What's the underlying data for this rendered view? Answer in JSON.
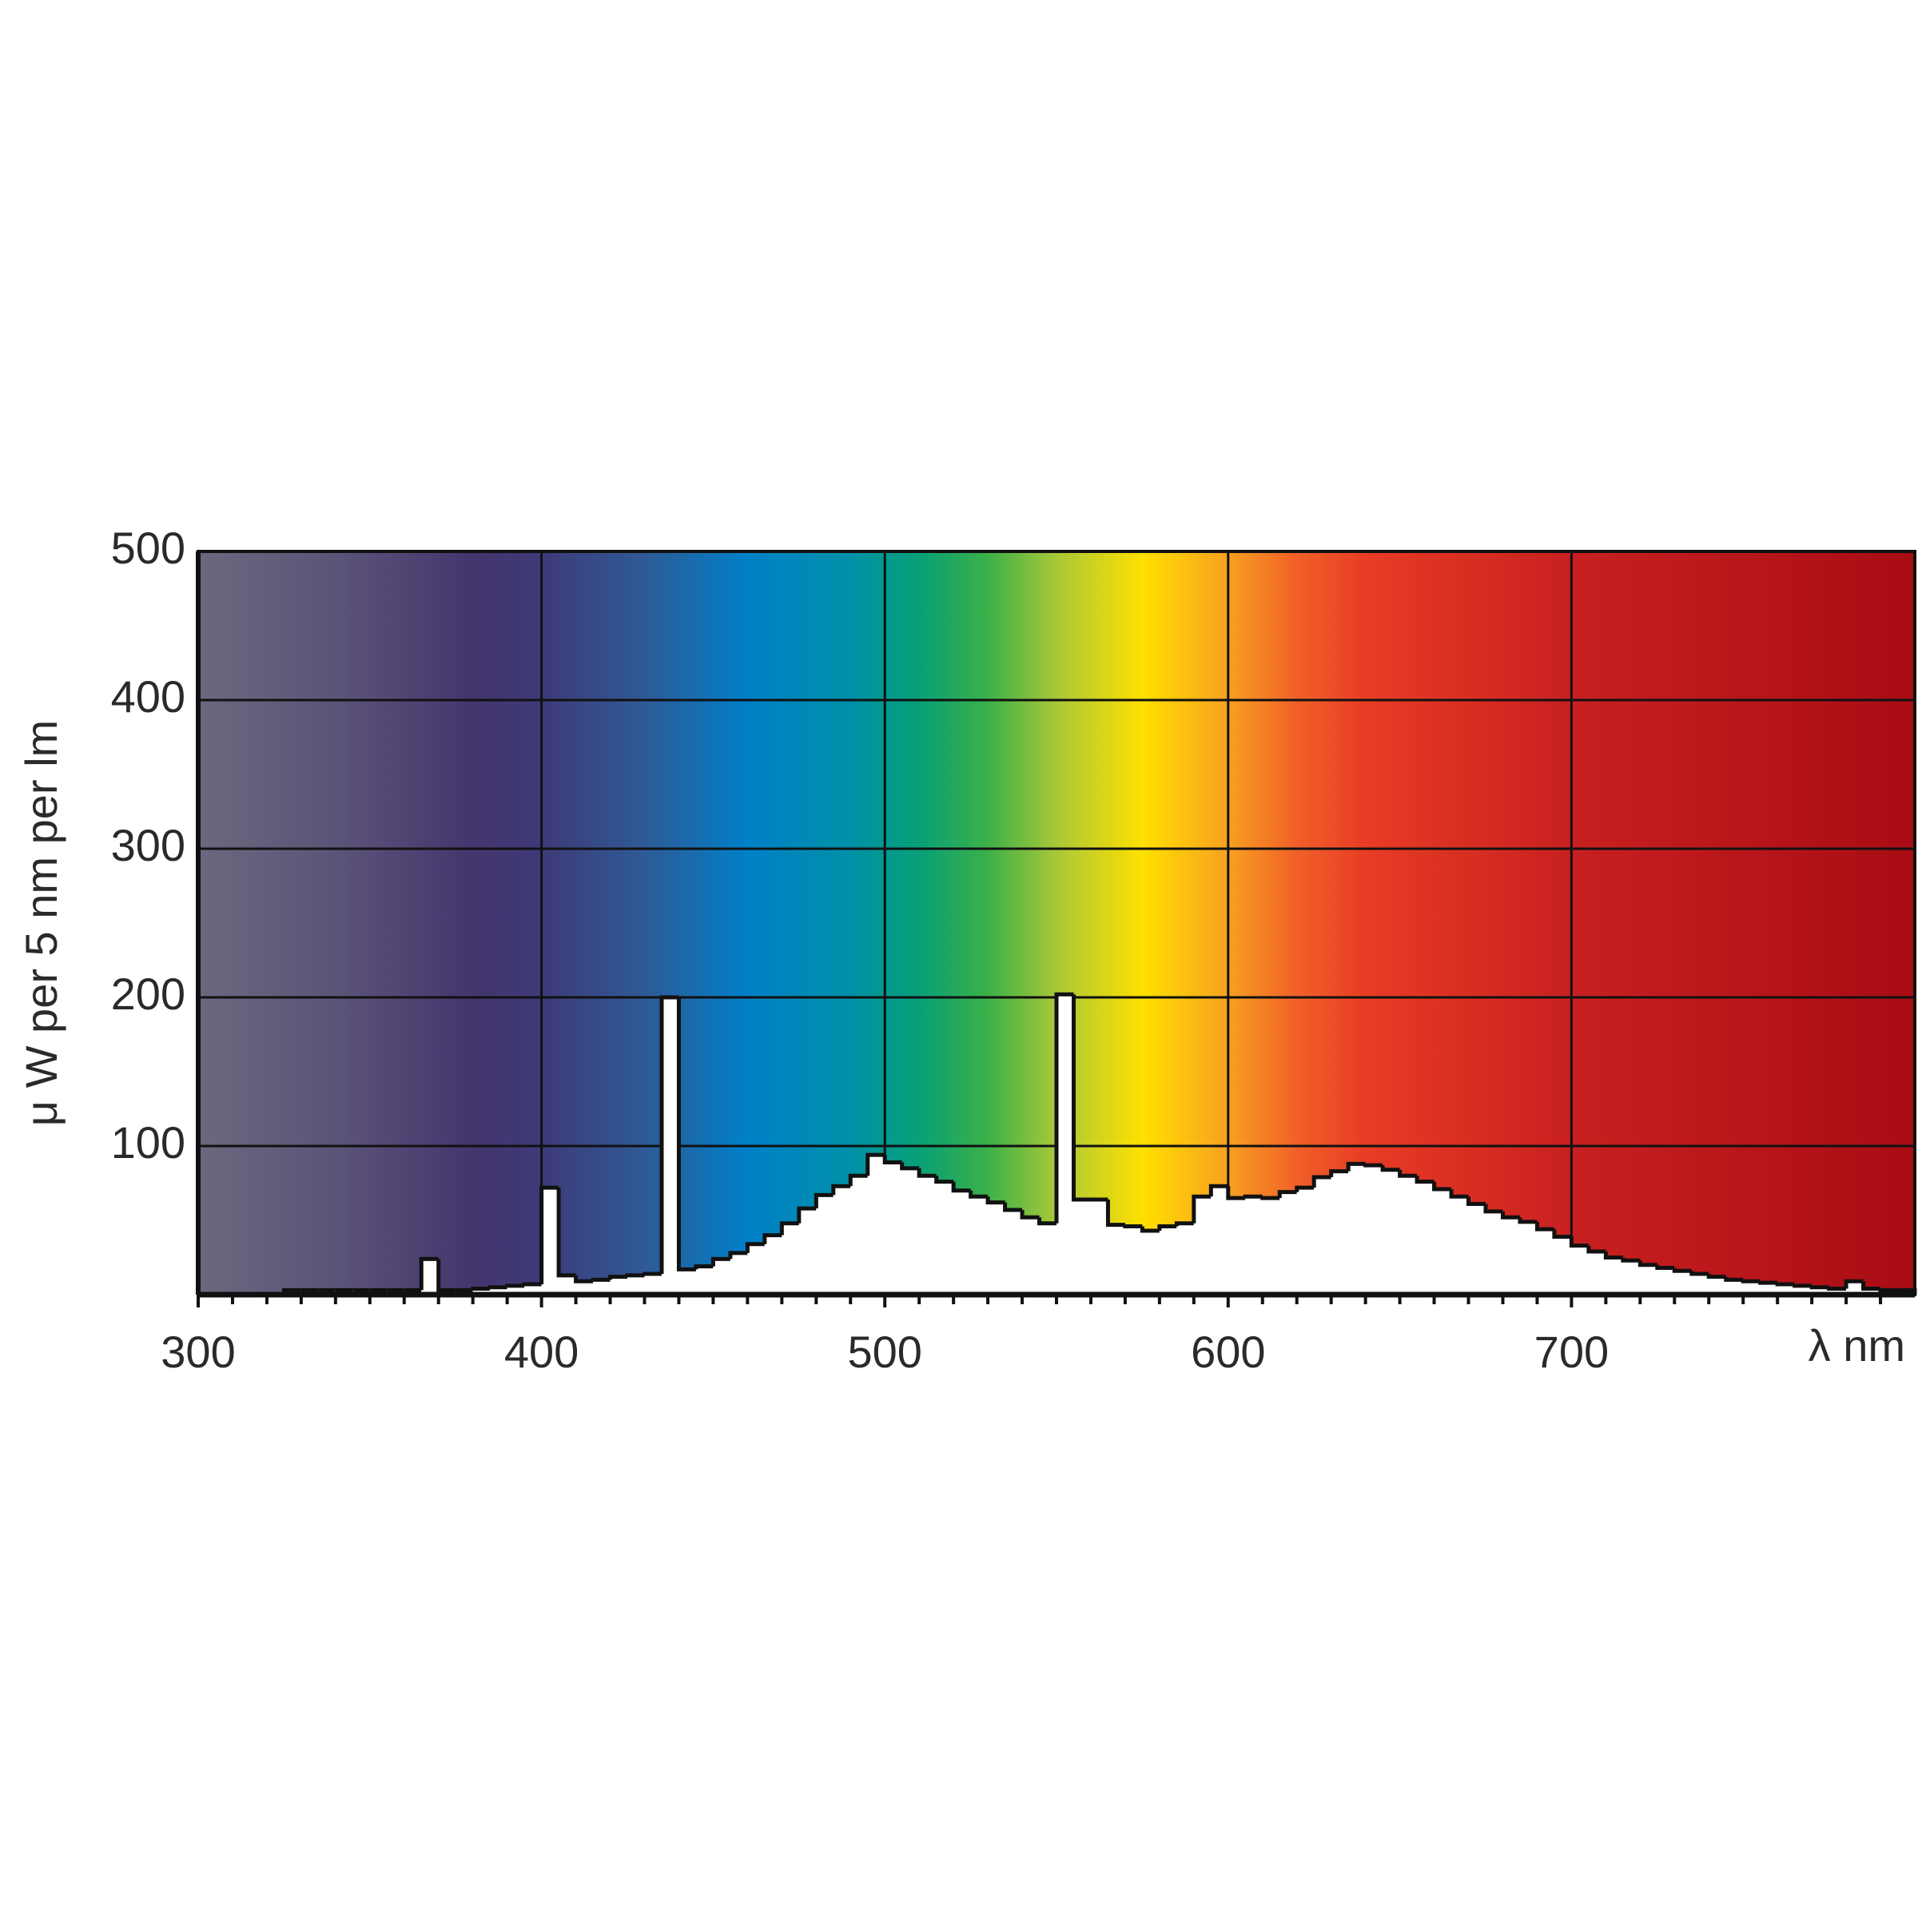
{
  "chart_data": {
    "type": "histogram",
    "ylabel": "μ W per 5 nm per lm",
    "xlabel": "λ nm",
    "xlim": [
      300,
      800
    ],
    "ylim": [
      0,
      500
    ],
    "xticks": [
      300,
      400,
      500,
      600,
      700
    ],
    "xminorticks": [
      310,
      320,
      330,
      340,
      350,
      360,
      370,
      380,
      390,
      410,
      420,
      430,
      440,
      450,
      460,
      470,
      480,
      490,
      510,
      520,
      530,
      540,
      550,
      560,
      570,
      580,
      590,
      610,
      620,
      630,
      640,
      650,
      660,
      670,
      680,
      690,
      710,
      720,
      730,
      740,
      750,
      760,
      770,
      780,
      790
    ],
    "yticks": [
      100,
      200,
      300,
      400,
      500
    ],
    "grid": true,
    "fill_color": "#ffffff",
    "line_color": "#111111",
    "bins": [
      325,
      330,
      335,
      340,
      345,
      350,
      355,
      360,
      365,
      370,
      375,
      380,
      385,
      390,
      395,
      400,
      405,
      410,
      415,
      420,
      425,
      430,
      435,
      440,
      445,
      450,
      455,
      460,
      465,
      470,
      475,
      480,
      485,
      490,
      495,
      500,
      505,
      510,
      515,
      520,
      525,
      530,
      535,
      540,
      545,
      550,
      555,
      560,
      565,
      570,
      575,
      580,
      585,
      590,
      595,
      600,
      605,
      610,
      615,
      620,
      625,
      630,
      635,
      640,
      645,
      650,
      655,
      660,
      665,
      670,
      675,
      680,
      685,
      690,
      695,
      700,
      705,
      710,
      715,
      720,
      725,
      730,
      735,
      740,
      745,
      750,
      755,
      760,
      765,
      770,
      775,
      780,
      785,
      790,
      795,
      800
    ],
    "values": [
      3,
      3,
      3,
      3,
      3,
      3,
      3,
      3,
      24,
      3,
      3,
      4,
      5,
      6,
      7,
      72,
      13,
      9,
      10,
      12,
      13,
      14,
      200,
      17,
      19,
      24,
      28,
      34,
      40,
      48,
      58,
      67,
      73,
      80,
      94,
      89,
      85,
      80,
      76,
      70,
      66,
      62,
      57,
      52,
      48,
      202,
      64,
      64,
      47,
      46,
      43,
      46,
      48,
      66,
      73,
      65,
      66,
      65,
      69,
      72,
      79,
      83,
      88,
      87,
      84,
      80,
      76,
      71,
      66,
      61,
      56,
      52,
      49,
      44,
      39,
      33,
      29,
      25,
      23,
      20,
      18,
      16,
      14,
      12,
      10,
      9,
      8,
      7,
      6,
      5,
      4,
      9,
      4,
      3,
      3
    ]
  }
}
